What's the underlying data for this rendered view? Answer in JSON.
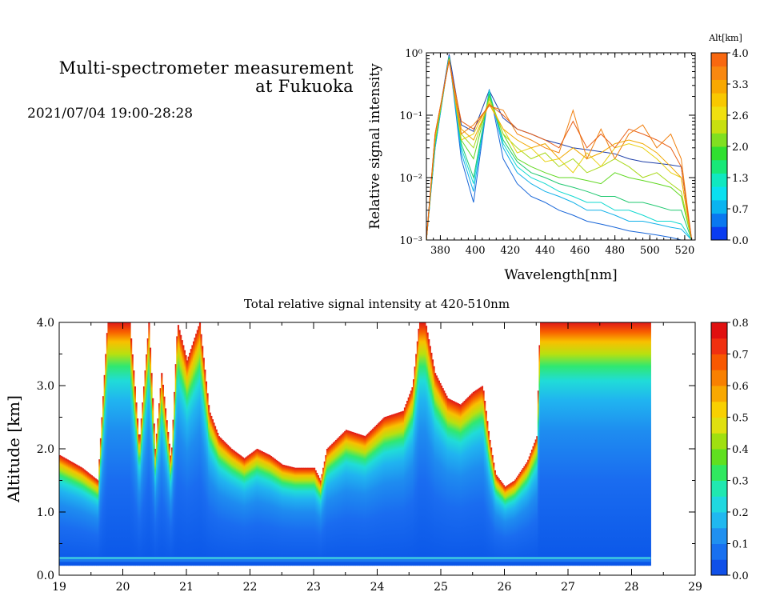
{
  "header": {
    "title_line1": "Multi-spectrometer measurement",
    "title_line2": "at Fukuoka",
    "datetime": "2021/07/04 19:00-28:28"
  },
  "chart_data": [
    {
      "type": "line",
      "xlabel": "Wavelength[nm]",
      "ylabel": "Relative signal intensity",
      "xlim": [
        372,
        526
      ],
      "ylim": [
        0.001,
        1
      ],
      "yscale": "log",
      "xticks": [
        380,
        400,
        420,
        440,
        460,
        480,
        500,
        520
      ],
      "yticks": [
        "10⁻³",
        "10⁻²",
        "10⁻¹",
        "10⁰"
      ],
      "colorbar": {
        "title": "Alt[km]",
        "ticks": [
          "0.0",
          "0.7",
          "1.3",
          "2.0",
          "2.6",
          "3.3",
          "4.0"
        ],
        "colors": [
          "#0a3cf0",
          "#0a78f0",
          "#0ab4f0",
          "#0ae0f0",
          "#10e8c0",
          "#18e878",
          "#30e030",
          "#80e020",
          "#c8e010",
          "#f0e010",
          "#f8c800",
          "#f8a800",
          "#f88810",
          "#f86810"
        ]
      },
      "x": [
        372,
        377,
        385,
        392,
        399,
        408,
        416,
        424,
        432,
        440,
        448,
        456,
        464,
        472,
        480,
        488,
        496,
        504,
        512,
        518,
        524
      ],
      "series": [
        {
          "color": "#1e3fa8",
          "values": [
            0.001,
            0.04,
            0.95,
            0.07,
            0.055,
            0.25,
            0.09,
            0.06,
            0.05,
            0.04,
            0.035,
            0.03,
            0.028,
            0.026,
            0.024,
            0.02,
            0.018,
            0.017,
            0.016,
            0.015,
            0.001
          ]
        },
        {
          "color": "#1866d8",
          "values": [
            0.001,
            0.03,
            0.9,
            0.02,
            0.004,
            0.26,
            0.02,
            0.008,
            0.005,
            0.004,
            0.003,
            0.0025,
            0.002,
            0.0018,
            0.0016,
            0.0014,
            0.0013,
            0.0012,
            0.0011,
            0.001,
            0.001
          ]
        },
        {
          "color": "#10b0e8",
          "values": [
            0.001,
            0.03,
            0.88,
            0.025,
            0.006,
            0.25,
            0.03,
            0.012,
            0.008,
            0.006,
            0.005,
            0.004,
            0.003,
            0.003,
            0.0025,
            0.002,
            0.002,
            0.0018,
            0.0016,
            0.0015,
            0.001
          ]
        },
        {
          "color": "#10d8d0",
          "values": [
            0.001,
            0.035,
            0.86,
            0.03,
            0.008,
            0.25,
            0.035,
            0.015,
            0.01,
            0.008,
            0.006,
            0.005,
            0.004,
            0.004,
            0.003,
            0.003,
            0.0025,
            0.002,
            0.002,
            0.0018,
            0.001
          ]
        },
        {
          "color": "#20c870",
          "values": [
            0.001,
            0.035,
            0.85,
            0.035,
            0.01,
            0.22,
            0.04,
            0.018,
            0.012,
            0.01,
            0.008,
            0.007,
            0.006,
            0.005,
            0.005,
            0.004,
            0.004,
            0.0035,
            0.003,
            0.003,
            0.001
          ]
        },
        {
          "color": "#60d820",
          "values": [
            0.001,
            0.04,
            0.82,
            0.04,
            0.02,
            0.2,
            0.05,
            0.02,
            0.015,
            0.012,
            0.01,
            0.01,
            0.009,
            0.008,
            0.012,
            0.01,
            0.009,
            0.008,
            0.007,
            0.005,
            0.001
          ]
        },
        {
          "color": "#a8d818",
          "values": [
            0.001,
            0.04,
            0.8,
            0.05,
            0.03,
            0.18,
            0.05,
            0.03,
            0.02,
            0.025,
            0.015,
            0.02,
            0.012,
            0.015,
            0.02,
            0.015,
            0.01,
            0.012,
            0.008,
            0.006,
            0.001
          ]
        },
        {
          "color": "#e8d010",
          "values": [
            0.001,
            0.045,
            0.78,
            0.04,
            0.05,
            0.16,
            0.06,
            0.025,
            0.03,
            0.018,
            0.02,
            0.012,
            0.025,
            0.015,
            0.03,
            0.035,
            0.03,
            0.02,
            0.012,
            0.01,
            0.001
          ]
        },
        {
          "color": "#f0a800",
          "values": [
            0.001,
            0.05,
            0.76,
            0.06,
            0.04,
            0.15,
            0.06,
            0.04,
            0.03,
            0.035,
            0.02,
            0.03,
            0.02,
            0.025,
            0.035,
            0.04,
            0.035,
            0.025,
            0.015,
            0.01,
            0.001
          ]
        },
        {
          "color": "#f08010",
          "values": [
            0.001,
            0.05,
            0.75,
            0.05,
            0.07,
            0.14,
            0.12,
            0.05,
            0.04,
            0.03,
            0.025,
            0.12,
            0.02,
            0.06,
            0.02,
            0.05,
            0.07,
            0.03,
            0.05,
            0.02,
            0.001
          ]
        },
        {
          "color": "#e86018",
          "values": [
            0.001,
            0.05,
            0.74,
            0.08,
            0.06,
            0.15,
            0.1,
            0.06,
            0.05,
            0.04,
            0.03,
            0.08,
            0.03,
            0.05,
            0.03,
            0.06,
            0.05,
            0.04,
            0.03,
            0.015,
            0.001
          ]
        }
      ]
    },
    {
      "type": "heatmap",
      "title": "Total relative signal intensity at 420-510nm",
      "ylabel": "Altitude [km]",
      "xlim": [
        19,
        29
      ],
      "ylim": [
        0,
        4
      ],
      "xticks": [
        19,
        20,
        21,
        22,
        23,
        24,
        25,
        26,
        27,
        28,
        29
      ],
      "yticks": [
        "0.0",
        "1.0",
        "2.0",
        "3.0",
        "4.0"
      ],
      "data_extent_x": [
        19,
        28.3
      ],
      "data_extent_y": [
        0.15,
        4
      ],
      "cloud_base_km": {
        "t": [
          19.0,
          19.35,
          19.6,
          19.75,
          19.95,
          20.1,
          20.25,
          20.4,
          20.5,
          20.6,
          20.75,
          20.85,
          21.0,
          21.2,
          21.35,
          21.5,
          21.7,
          21.9,
          22.1,
          22.3,
          22.5,
          22.7,
          23.0,
          23.1,
          23.2,
          23.5,
          23.8,
          24.1,
          24.4,
          24.55,
          24.65,
          24.75,
          24.9,
          25.1,
          25.3,
          25.5,
          25.65,
          25.75,
          25.85,
          26.0,
          26.15,
          26.35,
          26.5,
          26.55,
          26.7,
          27.0,
          27.3,
          27.5,
          27.6,
          27.8,
          28.0,
          28.3
        ],
        "alt": [
          1.9,
          1.7,
          1.5,
          4.0,
          4.0,
          4.0,
          2.1,
          4.0,
          2.0,
          3.2,
          1.8,
          4.0,
          3.4,
          4.0,
          2.6,
          2.2,
          2.0,
          1.85,
          2.0,
          1.9,
          1.75,
          1.7,
          1.7,
          1.5,
          2.0,
          2.3,
          2.2,
          2.5,
          2.6,
          3.0,
          4.0,
          4.0,
          3.2,
          2.8,
          2.7,
          2.9,
          3.0,
          2.2,
          1.6,
          1.4,
          1.5,
          1.8,
          2.2,
          4.0,
          4.0,
          4.0,
          4.0,
          4.0,
          4.0,
          4.0,
          4.0,
          4.0
        ]
      },
      "colorbar": {
        "ticks": [
          "0.0",
          "0.1",
          "0.2",
          "0.3",
          "0.4",
          "0.5",
          "0.6",
          "0.7",
          "0.8"
        ],
        "colors": [
          "#1050e8",
          "#1870f0",
          "#2090f0",
          "#20b8f0",
          "#20d8e0",
          "#20e8b0",
          "#30e860",
          "#60e020",
          "#a0e010",
          "#e0e010",
          "#f8d000",
          "#f8a800",
          "#f88000",
          "#f85800",
          "#f03010",
          "#e01010"
        ]
      }
    }
  ]
}
